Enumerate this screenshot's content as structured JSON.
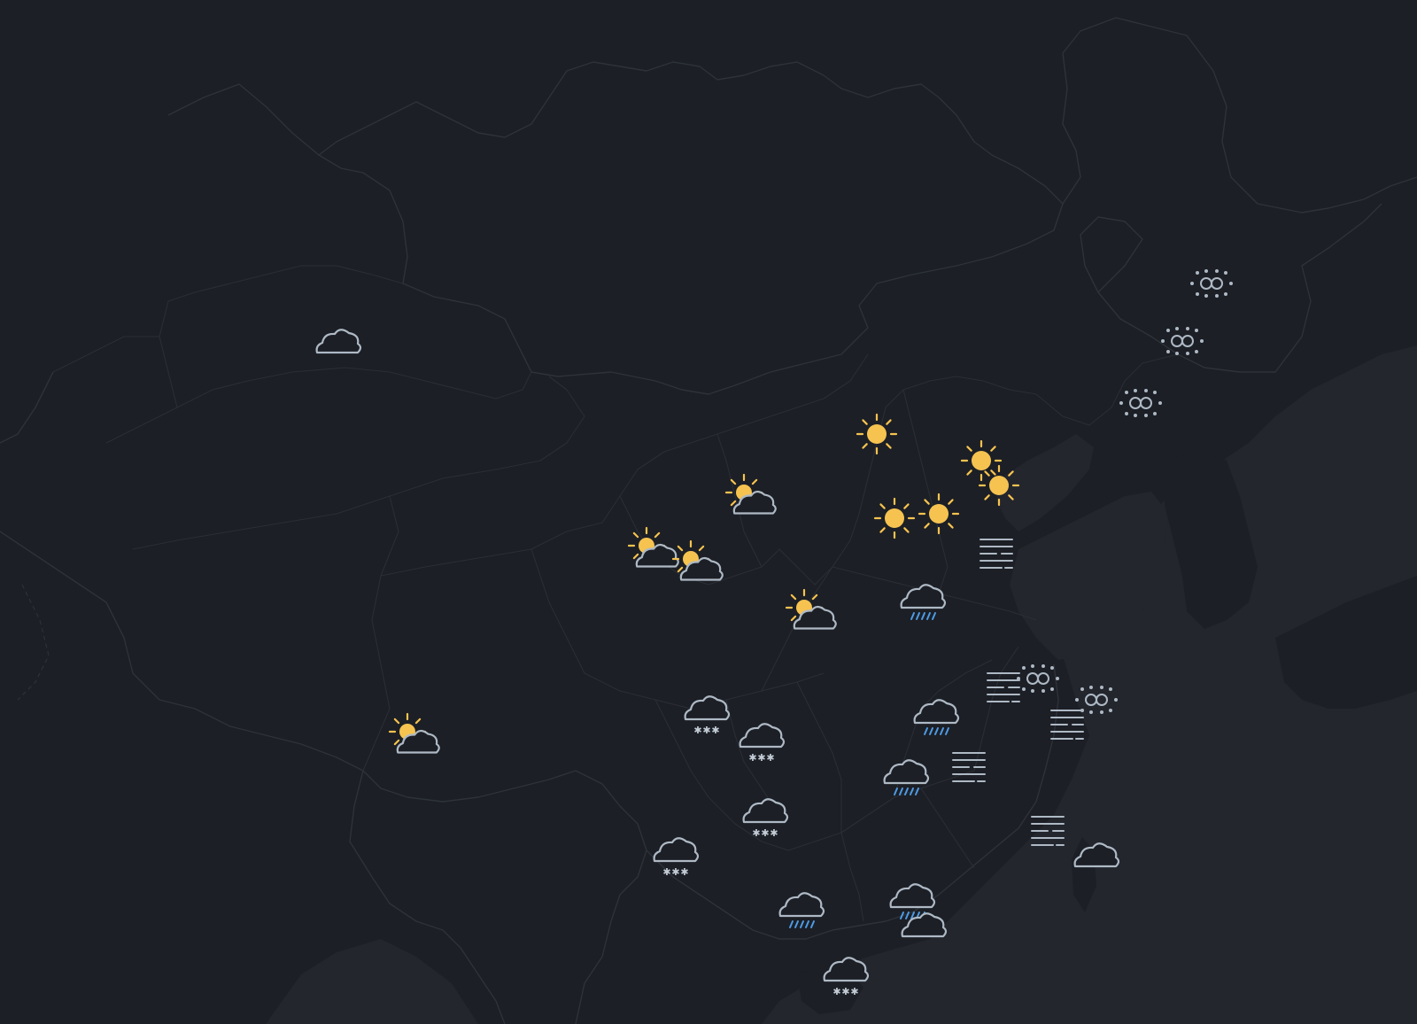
{
  "map": {
    "theme": "dark",
    "colors": {
      "background": "#1c1f25",
      "sea": "#23262d",
      "border": "#2e3239",
      "sun": "#f6c350",
      "cloud": "#aeb9c5",
      "rain": "#4d9be6",
      "snow": "#c3ccd6",
      "fog": "#aeb9c5"
    },
    "markers": [
      {
        "id": "urumqi",
        "icon": "cloudy"
      },
      {
        "id": "lhasa",
        "icon": "partly-cloudy"
      },
      {
        "id": "xining",
        "icon": "partly-cloudy"
      },
      {
        "id": "lanzhou",
        "icon": "partly-cloudy"
      },
      {
        "id": "yinchuan",
        "icon": "partly-cloudy"
      },
      {
        "id": "hohhot",
        "icon": "sunny"
      },
      {
        "id": "beijing",
        "icon": "sunny"
      },
      {
        "id": "tianjin",
        "icon": "sunny"
      },
      {
        "id": "taiyuan",
        "icon": "sunny"
      },
      {
        "id": "shijiazhuang",
        "icon": "sunny"
      },
      {
        "id": "xian",
        "icon": "partly-cloudy"
      },
      {
        "id": "harbin",
        "icon": "haze"
      },
      {
        "id": "changchun",
        "icon": "haze"
      },
      {
        "id": "shenyang",
        "icon": "haze"
      },
      {
        "id": "jinan",
        "icon": "fog"
      },
      {
        "id": "zhengzhou",
        "icon": "rain"
      },
      {
        "id": "nanjing",
        "icon": "fog"
      },
      {
        "id": "nanjing-haze",
        "icon": "haze"
      },
      {
        "id": "shanghai",
        "icon": "haze"
      },
      {
        "id": "hangzhou",
        "icon": "fog"
      },
      {
        "id": "hefei",
        "icon": "rain"
      },
      {
        "id": "wuhan",
        "icon": "rain"
      },
      {
        "id": "nanchang",
        "icon": "fog"
      },
      {
        "id": "fuzhou",
        "icon": "fog"
      },
      {
        "id": "taipei",
        "icon": "cloudy"
      },
      {
        "id": "chengdu",
        "icon": "snow"
      },
      {
        "id": "chongqing",
        "icon": "snow"
      },
      {
        "id": "guiyang",
        "icon": "snow"
      },
      {
        "id": "kunming",
        "icon": "snow"
      },
      {
        "id": "nanning",
        "icon": "rain"
      },
      {
        "id": "guangzhou",
        "icon": "rain"
      },
      {
        "id": "hongkong",
        "icon": "cloudy"
      },
      {
        "id": "haikou",
        "icon": "snow"
      }
    ]
  }
}
